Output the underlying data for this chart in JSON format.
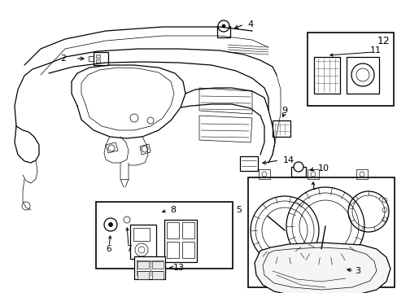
{
  "background_color": "#ffffff",
  "line_color": "#000000",
  "figure_width": 4.89,
  "figure_height": 3.6,
  "dpi": 100
}
